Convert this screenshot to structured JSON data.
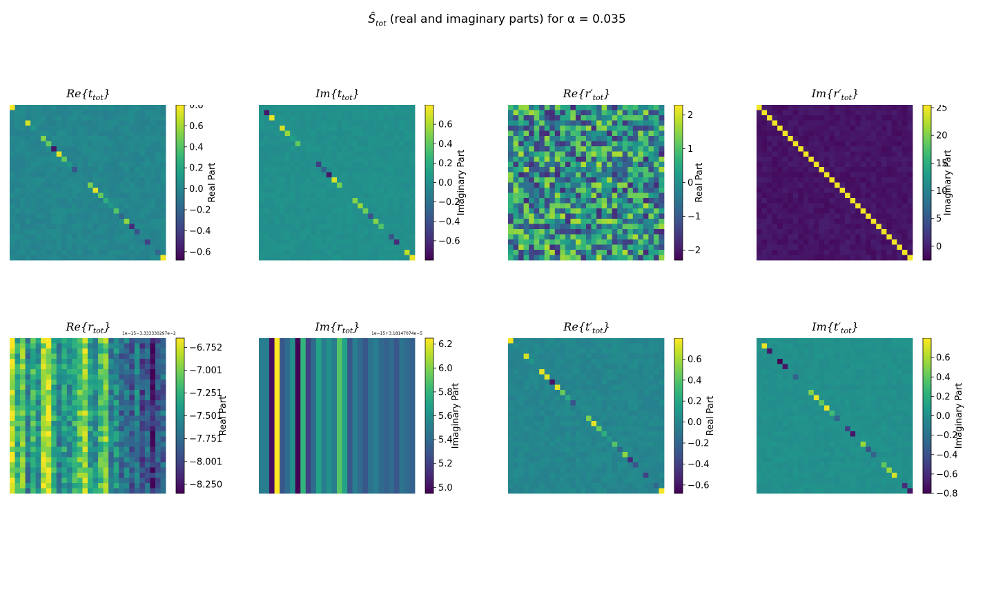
{
  "figure": {
    "suptitle_main": "Ŝ",
    "suptitle_sub": "tot",
    "suptitle_rest": " (real and imaginary parts) for  α = 0.035"
  },
  "chart_data": [
    {
      "type": "heatmap",
      "id": "re_ttot",
      "title": "Re{t_tot}",
      "title_parts": {
        "head": "Re{t",
        "sub": "tot",
        "tail": "}"
      },
      "colorbar_label": "Real Part",
      "colormap": "viridis",
      "vmin": -0.68,
      "vmax": 0.8,
      "ticks": [
        "−0.6",
        "−0.4",
        "−0.2",
        "0.0",
        "0.2",
        "0.4",
        "0.6",
        "0.8"
      ],
      "tick_values": [
        -0.6,
        -0.4,
        -0.2,
        0.0,
        0.2,
        0.4,
        0.6,
        0.8
      ],
      "offset_text": "",
      "matrix_size": 30,
      "pattern": "diagonal",
      "background": 0.0,
      "noise": 0.04,
      "diagonal": [
        0.79,
        0.05,
        0.03,
        0.7,
        0.1,
        0.0,
        0.52,
        0.45,
        -0.6,
        0.74,
        0.45,
        0.1,
        -0.3,
        0.0,
        0.0,
        0.5,
        0.75,
        0.45,
        0.25,
        0.1,
        0.4,
        -0.2,
        0.55,
        -0.5,
        -0.3,
        0.0,
        -0.4,
        0.0,
        -0.2,
        0.78
      ]
    },
    {
      "type": "heatmap",
      "id": "im_ttot",
      "title": "Im{t_tot}",
      "title_parts": {
        "head": "Im{t",
        "sub": "tot",
        "tail": "}"
      },
      "colorbar_label": "Imaginary Part",
      "colormap": "viridis",
      "vmin": -0.8,
      "vmax": 0.8,
      "ticks": [
        "−0.6",
        "−0.4",
        "−0.2",
        "0.0",
        "0.2",
        "0.4",
        "0.6"
      ],
      "tick_values": [
        -0.6,
        -0.4,
        -0.2,
        0.0,
        0.2,
        0.4,
        0.6
      ],
      "offset_text": "",
      "matrix_size": 30,
      "pattern": "diagonal",
      "background": 0.0,
      "noise": 0.03,
      "diagonal": [
        0.0,
        -0.7,
        0.75,
        0.0,
        0.7,
        0.55,
        0.1,
        0.4,
        0.0,
        0.0,
        0.0,
        -0.5,
        -0.3,
        -0.7,
        0.7,
        0.45,
        0.0,
        0.0,
        0.5,
        0.55,
        0.45,
        -0.4,
        0.5,
        0.35,
        0.0,
        -0.4,
        -0.6,
        0.0,
        0.65,
        0.75
      ]
    },
    {
      "type": "heatmap",
      "id": "re_rptot",
      "title": "Re{r'_tot}",
      "title_parts": {
        "head": "Re{r′",
        "sub": "tot",
        "tail": "}"
      },
      "colorbar_label": "Real Part",
      "colormap": "viridis",
      "vmin": -2.3,
      "vmax": 2.3,
      "ticks": [
        "−2",
        "−1",
        "0",
        "1",
        "2"
      ],
      "tick_values": [
        -2,
        -1,
        0,
        1,
        2
      ],
      "offset_text": "",
      "matrix_size": 30,
      "pattern": "random",
      "background": 0.0,
      "noise": 1.1,
      "diagonal": []
    },
    {
      "type": "heatmap",
      "id": "im_rptot",
      "title": "Im{r'_tot}",
      "title_parts": {
        "head": "Im{r′",
        "sub": "tot",
        "tail": "}"
      },
      "colorbar_label": "Imaginary Part",
      "colormap": "viridis",
      "vmin": -2.5,
      "vmax": 25.5,
      "ticks": [
        "0",
        "5",
        "10",
        "15",
        "20",
        "25"
      ],
      "tick_values": [
        0,
        5,
        10,
        15,
        20,
        25
      ],
      "offset_text": "",
      "matrix_size": 30,
      "pattern": "diagonal",
      "background": -1.0,
      "noise": 0.8,
      "diagonal": [
        25,
        25,
        25,
        25,
        25,
        25,
        25,
        25,
        25,
        25,
        25,
        25,
        25,
        25,
        25,
        25,
        25,
        25,
        25,
        25,
        25,
        25,
        25,
        25,
        25,
        25,
        25,
        25,
        25,
        25
      ]
    },
    {
      "type": "heatmap",
      "id": "re_rtot",
      "title": "Re{r_tot}",
      "title_parts": {
        "head": "Re{r",
        "sub": "tot",
        "tail": "}"
      },
      "colorbar_label": "Real Part",
      "colormap": "viridis",
      "vmin": -8.35,
      "vmax": -6.65,
      "ticks": [
        "−8.250",
        "−8.001",
        "−7.751",
        "−7.501",
        "−7.251",
        "−7.001",
        "−6.752"
      ],
      "tick_values": [
        -8.25,
        -8.001,
        -7.751,
        -7.501,
        -7.251,
        -7.001,
        -6.752
      ],
      "offset_text": "1e−15−3.333330297e−2",
      "matrix_size": 30,
      "pattern": "columns",
      "background": -7.5,
      "noise": 0.25,
      "diagonal": [],
      "column_values": [
        -6.8,
        -7.3,
        -7.0,
        -7.6,
        -7.2,
        -7.5,
        -6.9,
        -6.8,
        -7.3,
        -7.6,
        -7.4,
        -7.5,
        -7.3,
        -7.1,
        -6.9,
        -7.4,
        -7.5,
        -7.2,
        -7.0,
        -7.6,
        -7.5,
        -7.8,
        -7.7,
        -7.9,
        -7.6,
        -8.0,
        -7.8,
        -8.2,
        -7.9,
        -7.8
      ]
    },
    {
      "type": "heatmap",
      "id": "im_rtot",
      "title": "Im{r_tot}",
      "title_parts": {
        "head": "Im{r",
        "sub": "tot",
        "tail": "}"
      },
      "colorbar_label": "Imaginary Part",
      "colormap": "viridis",
      "vmin": 4.95,
      "vmax": 6.25,
      "ticks": [
        "5.0",
        "5.2",
        "5.4",
        "5.6",
        "5.8",
        "6.0",
        "6.2"
      ],
      "tick_values": [
        5.0,
        5.2,
        5.4,
        5.6,
        5.8,
        6.0,
        6.2
      ],
      "offset_text": "1e−15+3.18147074e−5",
      "matrix_size": 30,
      "pattern": "columns",
      "background": 5.5,
      "noise": 0.0,
      "diagonal": [],
      "column_values": [
        5.5,
        5.5,
        5.0,
        6.25,
        5.3,
        5.4,
        5.6,
        4.95,
        5.8,
        5.2,
        5.4,
        5.7,
        5.5,
        5.6,
        5.5,
        5.9,
        5.7,
        5.3,
        5.5,
        5.4,
        5.3,
        5.45,
        5.5,
        5.4,
        5.35,
        5.4,
        5.3,
        5.45,
        5.4,
        5.35
      ]
    },
    {
      "type": "heatmap",
      "id": "re_tptot",
      "title": "Re{t'_tot}",
      "title_parts": {
        "head": "Re{t′",
        "sub": "tot",
        "tail": "}"
      },
      "colorbar_label": "Real Part",
      "colormap": "viridis",
      "vmin": -0.68,
      "vmax": 0.8,
      "ticks": [
        "−0.6",
        "−0.4",
        "−0.2",
        "0.0",
        "0.2",
        "0.4",
        "0.6"
      ],
      "tick_values": [
        -0.6,
        -0.4,
        -0.2,
        0.0,
        0.2,
        0.4,
        0.6
      ],
      "offset_text": "",
      "matrix_size": 30,
      "pattern": "diagonal",
      "background": 0.0,
      "noise": 0.04,
      "diagonal": [
        0.78,
        0.05,
        0.0,
        0.7,
        0.1,
        0.0,
        0.75,
        0.72,
        -0.6,
        0.74,
        0.45,
        0.2,
        -0.3,
        0.0,
        0.0,
        0.5,
        0.75,
        0.45,
        0.25,
        0.1,
        0.4,
        -0.2,
        0.55,
        -0.5,
        -0.3,
        0.0,
        -0.4,
        0.0,
        -0.2,
        0.78
      ]
    },
    {
      "type": "heatmap",
      "id": "im_tptot",
      "title": "Im{t'_tot}",
      "title_parts": {
        "head": "Im{t′",
        "sub": "tot",
        "tail": "}"
      },
      "colorbar_label": "Imaginary Part",
      "colormap": "viridis",
      "vmin": -0.8,
      "vmax": 0.8,
      "ticks": [
        "−0.8",
        "−0.6",
        "−0.4",
        "−0.2",
        "0.0",
        "0.2",
        "0.4",
        "0.6"
      ],
      "tick_values": [
        -0.8,
        -0.6,
        -0.4,
        -0.2,
        0.0,
        0.2,
        0.4,
        0.6
      ],
      "offset_text": "",
      "matrix_size": 30,
      "pattern": "diagonal",
      "background": 0.0,
      "noise": 0.03,
      "diagonal": [
        0.0,
        0.75,
        -0.7,
        0.0,
        -0.8,
        -0.7,
        0.0,
        -0.3,
        0.0,
        0.0,
        0.5,
        0.75,
        0.4,
        0.75,
        0.3,
        -0.3,
        0.0,
        -0.5,
        -0.7,
        0.0,
        0.55,
        -0.4,
        -0.3,
        0.0,
        0.4,
        0.55,
        0.7,
        0.0,
        -0.6,
        -0.7
      ]
    }
  ]
}
